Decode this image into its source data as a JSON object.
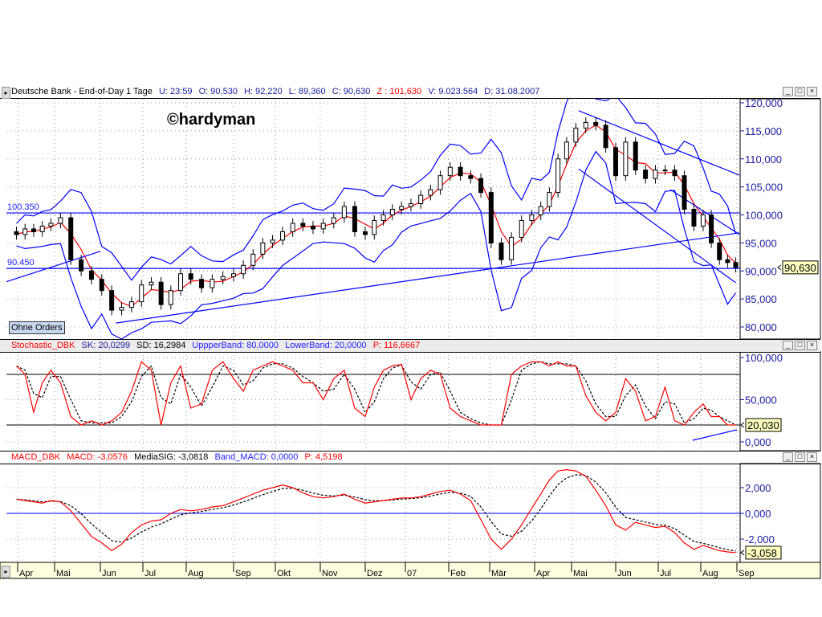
{
  "header": {
    "price": {
      "instrument": "Deutsche Bank - End-of-Day 1 Tage",
      "u": "U: 23:59",
      "o": "O: 90,530",
      "h": "H: 92,220",
      "l": "L: 89,360",
      "c": "C: 90,630",
      "z": "Z : 101,630",
      "v": "V: 9.023.564",
      "d": "D: 31.08.2007"
    },
    "stoch": {
      "name": "Stochastic_DBK",
      "sk": "SK: 20,0299",
      "sd": "SD: 16,2984",
      "upper": "UppperBand: 80,0000",
      "lower": "LowerBand: 20,0000",
      "p": "P: 116,6667"
    },
    "macd": {
      "name": "MACD_DBK",
      "macd": "MACD: -3,0576",
      "sig": "MediaSIG: -3,0818",
      "band": "Band_MACD: 0,0000",
      "p": "P: 4,5198"
    }
  },
  "window_buttons": {
    "minimize": "_",
    "maximize": "□",
    "close": "×"
  },
  "watermark": "©hardyman",
  "orders_button": "Ohne Orders",
  "colors": {
    "candle": "#000000",
    "moving_average": "#ff0000",
    "bands": "#0000ff",
    "trendline": "#0000ff",
    "signal": "#000000",
    "axis_text": "#1a1aa0",
    "axis_bg": "#ffffe0",
    "value_box": "#ffffc0"
  },
  "chart_data": [
    {
      "type": "line",
      "panel": "price",
      "style": "candlestick with Bollinger bands and moving average",
      "ylim": [
        79,
        121
      ],
      "yticks": [
        "120,000",
        "115,000",
        "110,000",
        "105,000",
        "100,000",
        "95,000",
        "90,000",
        "85,000",
        "80,000"
      ],
      "ytick_values": [
        120,
        115,
        110,
        105,
        100,
        95,
        90,
        85,
        80
      ],
      "current_value": "90,630",
      "levels": [
        {
          "label": "100.350",
          "value": 100.35
        },
        {
          "label": "90.450",
          "value": 90.45
        }
      ],
      "trendlines": [
        {
          "from": [
            "2006-03-20",
            87.9
          ],
          "to": [
            "2006-06-01",
            93.5
          ]
        },
        {
          "from": [
            "2006-06-12",
            80.7
          ],
          "to": [
            "2007-09-03",
            96.8
          ]
        },
        {
          "from": [
            "2007-05-06",
            118.6
          ],
          "to": [
            "2007-09-03",
            107.1
          ]
        },
        {
          "from": [
            "2007-05-06",
            108.2
          ],
          "to": [
            "2007-08-31",
            87.9
          ]
        },
        {
          "from": [
            "2007-07-10",
            104.5
          ],
          "to": [
            "2007-09-03",
            96.5
          ]
        }
      ],
      "dates": [
        "2006-03-31",
        "2006-04-07",
        "2006-04-14",
        "2006-04-21",
        "2006-04-28",
        "2006-05-05",
        "2006-05-12",
        "2006-05-19",
        "2006-05-26",
        "2006-06-02",
        "2006-06-09",
        "2006-06-16",
        "2006-06-23",
        "2006-06-30",
        "2006-07-07",
        "2006-07-14",
        "2006-07-21",
        "2006-07-28",
        "2006-08-04",
        "2006-08-11",
        "2006-08-18",
        "2006-08-25",
        "2006-09-01",
        "2006-09-08",
        "2006-09-15",
        "2006-09-22",
        "2006-09-29",
        "2006-10-06",
        "2006-10-13",
        "2006-10-20",
        "2006-10-27",
        "2006-11-03",
        "2006-11-10",
        "2006-11-17",
        "2006-11-24",
        "2006-12-01",
        "2006-12-08",
        "2006-12-15",
        "2006-12-22",
        "2006-12-29",
        "2007-01-05",
        "2007-01-12",
        "2007-01-19",
        "2007-01-26",
        "2007-02-02",
        "2007-02-09",
        "2007-02-16",
        "2007-02-23",
        "2007-03-02",
        "2007-03-09",
        "2007-03-16",
        "2007-03-23",
        "2007-03-30",
        "2007-04-06",
        "2007-04-13",
        "2007-04-20",
        "2007-04-27",
        "2007-05-04",
        "2007-05-11",
        "2007-05-18",
        "2007-05-25",
        "2007-06-01",
        "2007-06-08",
        "2007-06-15",
        "2007-06-22",
        "2007-06-29",
        "2007-07-06",
        "2007-07-13",
        "2007-07-20",
        "2007-07-27",
        "2007-08-03",
        "2007-08-10",
        "2007-08-17",
        "2007-08-24",
        "2007-08-31"
      ],
      "close": [
        96.5,
        97.5,
        97,
        98,
        98.5,
        99.5,
        92,
        90,
        88.5,
        86.5,
        83,
        83.5,
        84.5,
        87.5,
        88,
        84,
        86.5,
        89.5,
        88.5,
        87,
        88.5,
        89,
        89.5,
        91,
        93,
        95,
        95.5,
        97,
        98.5,
        98,
        97.5,
        98.5,
        99.5,
        101.5,
        97,
        96.5,
        99,
        100,
        101,
        101.5,
        102,
        103.5,
        104.5,
        107,
        108.5,
        107,
        106.5,
        104,
        95,
        92,
        96,
        99,
        100,
        101.5,
        104,
        110,
        113,
        115.5,
        116.5,
        116,
        112,
        107,
        113,
        108,
        106.5,
        108,
        108,
        107,
        101,
        98,
        100,
        95,
        92,
        91.5,
        90.63
      ]
    },
    {
      "type": "line",
      "panel": "stochastic",
      "ylim": [
        -5,
        105
      ],
      "yticks": [
        "100,000",
        "50,000",
        "0,000"
      ],
      "ytick_values": [
        100,
        50,
        0
      ],
      "bands": [
        80,
        20
      ],
      "current_value": "20,030",
      "trendlines": [
        {
          "from": [
            "2007-07-26",
            1.9
          ],
          "to": [
            "2007-09-01",
            14.3
          ]
        }
      ],
      "sk": [
        90,
        80,
        35,
        70,
        85,
        70,
        30,
        20,
        25,
        20,
        25,
        35,
        60,
        95,
        85,
        20,
        70,
        90,
        40,
        45,
        85,
        95,
        75,
        60,
        85,
        90,
        95,
        90,
        85,
        70,
        70,
        50,
        75,
        85,
        40,
        30,
        65,
        85,
        90,
        92,
        50,
        75,
        85,
        80,
        40,
        30,
        25,
        20,
        20,
        20,
        80,
        90,
        95,
        95,
        90,
        95,
        90,
        90,
        55,
        35,
        25,
        35,
        75,
        60,
        25,
        30,
        65,
        25,
        20,
        35,
        45,
        30,
        30,
        20,
        20.03
      ]
    },
    {
      "type": "line",
      "panel": "macd",
      "ylim": [
        -3.8,
        3.8
      ],
      "yticks": [
        "2,000",
        "0,000",
        "-2,000"
      ],
      "ytick_values": [
        2,
        0,
        -2
      ],
      "zero_line": 0,
      "current_value": "-3,058",
      "macd": [
        1.1,
        1.0,
        0.9,
        0.8,
        1.0,
        0.9,
        0.2,
        -0.8,
        -1.8,
        -2.3,
        -2.9,
        -2.4,
        -1.5,
        -0.9,
        -0.6,
        -0.5,
        0.0,
        0.3,
        0.2,
        0.3,
        0.5,
        0.6,
        0.9,
        1.2,
        1.5,
        1.8,
        2.0,
        2.2,
        2.0,
        1.6,
        1.3,
        1.2,
        1.3,
        1.5,
        1.1,
        0.8,
        0.9,
        1.0,
        1.1,
        1.2,
        1.2,
        1.3,
        1.5,
        1.7,
        1.8,
        1.5,
        1.0,
        -0.5,
        -2.0,
        -2.8,
        -2.0,
        -0.9,
        0.4,
        1.5,
        2.6,
        3.3,
        3.4,
        3.3,
        2.9,
        1.8,
        0.6,
        -0.9,
        -1.3,
        -0.7,
        -0.9,
        -1.1,
        -1.0,
        -1.5,
        -2.3,
        -2.8,
        -2.5,
        -2.7,
        -2.9,
        -3.0,
        -3.058
      ]
    }
  ],
  "xaxis": {
    "labels": [
      "Apr",
      "Mai",
      "Jun",
      "Jul",
      "Aug",
      "Sep",
      "Okt",
      "Nov",
      "Dez",
      "07",
      "Feb",
      "Mär",
      "Apr",
      "Mai",
      "Jun",
      "Jul",
      "Aug",
      "Sep"
    ],
    "months": [
      "2006-04",
      "2006-05",
      "2006-06",
      "2006-07",
      "2006-08",
      "2006-09",
      "2006-10",
      "2006-11",
      "2006-12",
      "2007-01",
      "2007-02",
      "2007-03",
      "2007-04",
      "2007-05",
      "2007-06",
      "2007-07",
      "2007-08",
      "2007-09"
    ]
  }
}
